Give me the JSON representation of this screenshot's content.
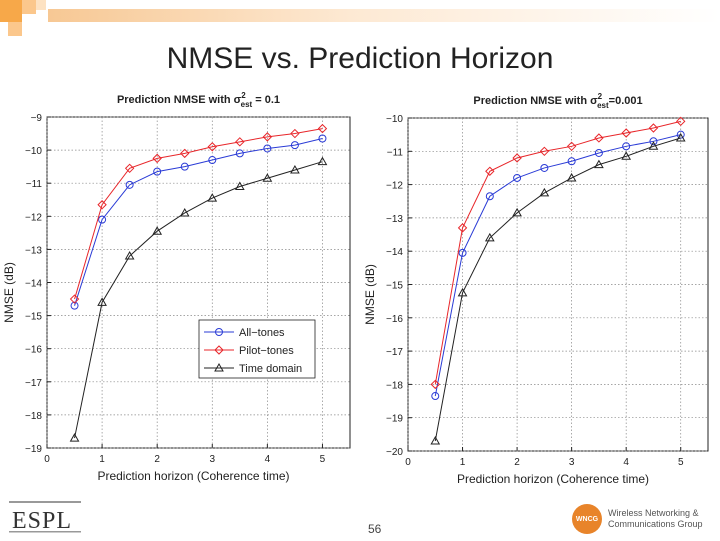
{
  "slide": {
    "title": "NMSE vs. Prediction Horizon",
    "page_number": "56",
    "logo_left": "ESPL",
    "logo_right_badge": "WNCG",
    "logo_right_line1": "Wireless Networking &",
    "logo_right_line2": "Communications Group"
  },
  "colors": {
    "blue": "#2a3bd6",
    "red": "#e8262a",
    "black": "#222222",
    "accent": "#f7a849"
  },
  "chart_data": [
    {
      "type": "line",
      "title": "Prediction NMSE with σ²est = 0.1",
      "title_parts": {
        "main": "Prediction NMSE with σ",
        "sup": "2",
        "sub": "est",
        "tail": " = 0.1"
      },
      "xlabel": "Prediction horizon (Coherence time)",
      "ylabel": "NMSE (dB)",
      "xlim": [
        0,
        5.5
      ],
      "ylim": [
        -19,
        -9
      ],
      "xticks": [
        0,
        1,
        2,
        3,
        4,
        5
      ],
      "yticks": [
        -9,
        -10,
        -11,
        -12,
        -13,
        -14,
        -15,
        -16,
        -17,
        -18,
        -19
      ],
      "x": [
        0.5,
        1,
        1.5,
        2,
        2.5,
        3,
        3.5,
        4,
        4.5,
        5
      ],
      "series": [
        {
          "name": "All−tones",
          "marker": "circle",
          "color": "#2a3bd6",
          "values": [
            -14.7,
            -12.1,
            -11.05,
            -10.65,
            -10.5,
            -10.3,
            -10.1,
            -9.95,
            -9.85,
            -9.65
          ]
        },
        {
          "name": "Pilot−tones",
          "marker": "diamond",
          "color": "#e8262a",
          "values": [
            -14.5,
            -11.65,
            -10.55,
            -10.25,
            -10.1,
            -9.9,
            -9.75,
            -9.6,
            -9.5,
            -9.35
          ]
        },
        {
          "name": "Time domain",
          "marker": "triangle",
          "color": "#222222",
          "values": [
            -18.7,
            -14.6,
            -13.2,
            -12.45,
            -11.9,
            -11.45,
            -11.1,
            -10.85,
            -10.6,
            -10.35
          ]
        }
      ],
      "legend": "bottom-right",
      "grid": true
    },
    {
      "type": "line",
      "title": "Prediction NMSE with σ²est=0.001",
      "title_parts": {
        "main": "Prediction NMSE with σ",
        "sup": "2",
        "sub": "est",
        "tail": "=0.001"
      },
      "xlabel": "Prediction horizon (Coherence time)",
      "ylabel": "NMSE (dB)",
      "xlim": [
        0,
        5.5
      ],
      "ylim": [
        -20,
        -10
      ],
      "xticks": [
        0,
        1,
        2,
        3,
        4,
        5
      ],
      "yticks": [
        -10,
        -11,
        -12,
        -13,
        -14,
        -15,
        -16,
        -17,
        -18,
        -19,
        -20
      ],
      "x": [
        0.5,
        1,
        1.5,
        2,
        2.5,
        3,
        3.5,
        4,
        4.5,
        5
      ],
      "series": [
        {
          "name": "All−tones",
          "marker": "circle",
          "color": "#2a3bd6",
          "values": [
            -18.35,
            -14.05,
            -12.35,
            -11.8,
            -11.5,
            -11.3,
            -11.05,
            -10.85,
            -10.7,
            -10.5
          ]
        },
        {
          "name": "Pilot−tones",
          "marker": "diamond",
          "color": "#e8262a",
          "values": [
            -18.0,
            -13.3,
            -11.6,
            -11.2,
            -11.0,
            -10.85,
            -10.6,
            -10.45,
            -10.3,
            -10.1
          ]
        },
        {
          "name": "Time domain",
          "marker": "triangle",
          "color": "#222222",
          "values": [
            -19.7,
            -15.25,
            -13.6,
            -12.85,
            -12.25,
            -11.8,
            -11.4,
            -11.15,
            -10.85,
            -10.6
          ]
        }
      ],
      "legend": "none",
      "grid": true
    }
  ]
}
